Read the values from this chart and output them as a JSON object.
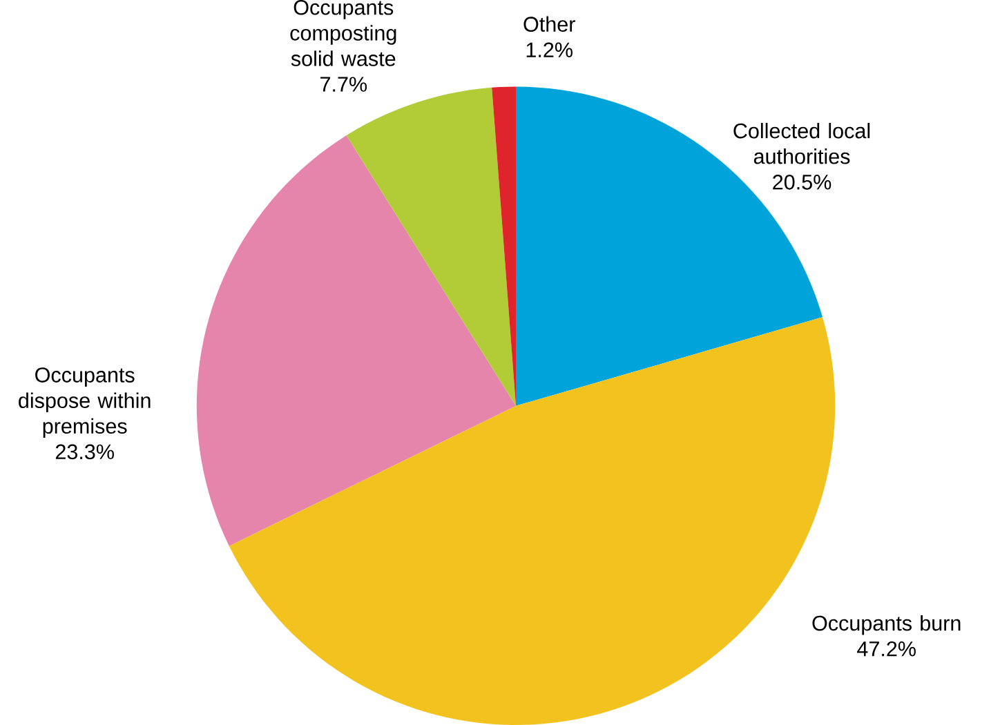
{
  "chart_data": {
    "type": "pie",
    "categories": [
      "Collected local authorities",
      "Occupants burn",
      "Occupants dispose within premises",
      "Occupants composting solid waste",
      "Other"
    ],
    "values": [
      20.5,
      47.2,
      23.3,
      7.7,
      1.2
    ],
    "value_labels": [
      "20.5%",
      "47.2%",
      "23.3%",
      "7.7%",
      "1.2%"
    ],
    "colors": [
      "#00a3da",
      "#f2c21f",
      "#e585ab",
      "#b1cc36",
      "#e0242b"
    ]
  }
}
